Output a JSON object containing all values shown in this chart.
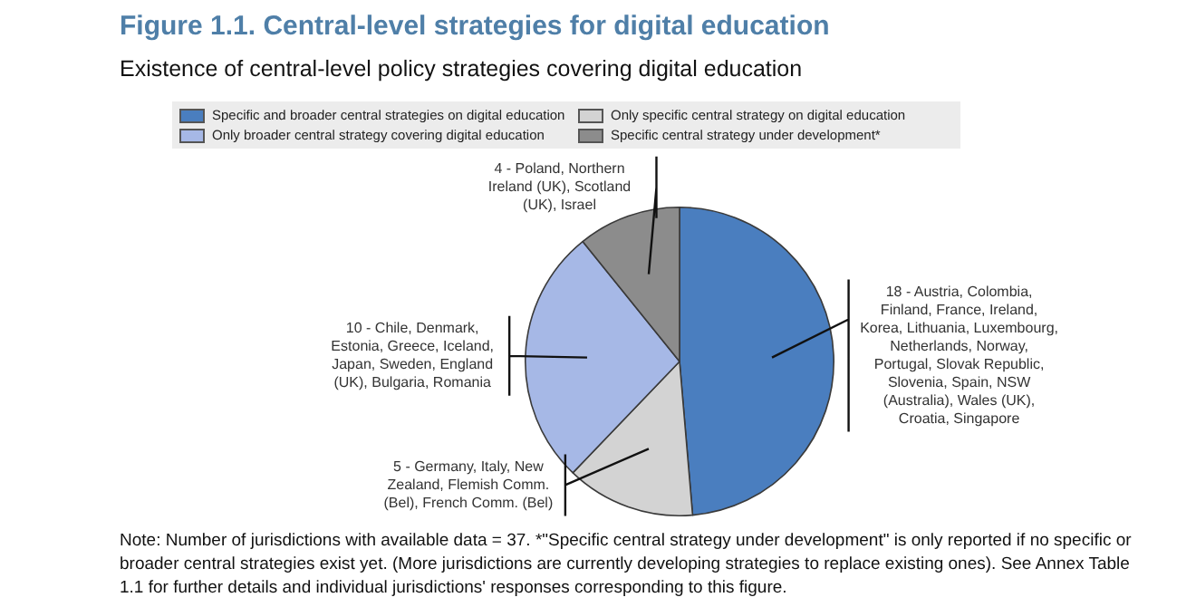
{
  "chart_data": {
    "type": "pie",
    "title": "Figure 1.1. Central-level strategies for digital education",
    "subtitle": "Existence of central-level policy strategies covering digital education",
    "categories": [
      "Specific and broader central strategies on digital education",
      "Only specific central strategy on digital education",
      "Only broader central strategy covering digital education",
      "Specific central strategy under development*"
    ],
    "values": [
      18,
      5,
      10,
      4
    ],
    "colors": [
      "#4a7ebf",
      "#d3d3d3",
      "#a6b8e6",
      "#8c8c8c"
    ],
    "value_labels": [
      "18 - Austria, Colombia, Finland, France, Ireland, Korea, Lithuania, Luxembourg, Netherlands, Norway, Portugal, Slovak Republic, Slovenia, Spain, NSW (Australia), Wales (UK), Croatia, Singapore",
      "5 - Germany, Italy, New Zealand, Flemish Comm. (Bel), French Comm. (Bel)",
      "10 - Chile, Denmark, Estonia, Greece, Iceland, Japan, Sweden, England (UK), Bulgaria, Romania",
      "4 - Poland, Northern Ireland (UK), Scotland (UK), Israel"
    ],
    "legend": "top",
    "annotations": [
      "Note: Number of jurisdictions with available data = 37. *\"Specific central strategy under development\" is only reported if no specific or broader central strategies exist yet. (More jurisdictions are currently developing strategies to replace existing ones). See Annex Table 1.1 for further details and individual jurisdictions' responses corresponding to this figure."
    ]
  }
}
